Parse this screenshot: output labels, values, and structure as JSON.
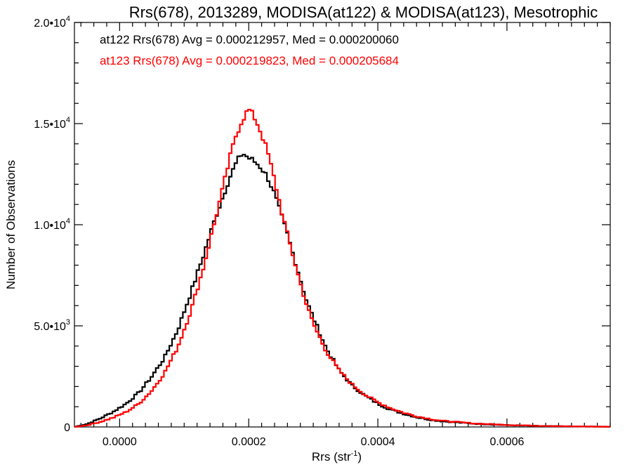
{
  "chart_data": {
    "type": "line",
    "title": "Rrs(678), 2013289, MODISA(at122) & MODISA(at123), Mesotrophic",
    "xlabel": "Rrs (str",
    "xlabel_sup": "-1",
    "xlabel_suffix": ")",
    "ylabel": "Number of Observations",
    "xlim": [
      -7e-05,
      0.00076
    ],
    "ylim": [
      0,
      20000
    ],
    "x_ticks": [
      0.0,
      0.0002,
      0.0004,
      0.0006
    ],
    "x_tick_labels": [
      "0.0000",
      "0.0002",
      "0.0004",
      "0.0006"
    ],
    "y_ticks": [
      {
        "value": 0,
        "base": "0",
        "exp": ""
      },
      {
        "value": 5000,
        "base": "5.0•10",
        "exp": "3"
      },
      {
        "value": 10000,
        "base": "1.0•10",
        "exp": "4"
      },
      {
        "value": 15000,
        "base": "1.5•10",
        "exp": "4"
      },
      {
        "value": 20000,
        "base": "2.0•10",
        "exp": "4"
      }
    ],
    "grid": false,
    "legend": [
      {
        "text": "at122 Rrs(678) Avg = 0.000212957, Med = 0.000200060",
        "color": "#000000"
      },
      {
        "text": "at123 Rrs(678) Avg = 0.000219823, Med = 0.000205684",
        "color": "#ff0000"
      }
    ],
    "series": [
      {
        "name": "at122",
        "color": "#000000",
        "x": [
          -7e-05,
          -5e-05,
          -3e-05,
          -1e-05,
          1e-05,
          3e-05,
          5e-05,
          7e-05,
          9e-05,
          0.00011,
          0.00013,
          0.00015,
          0.00016,
          0.00017,
          0.00018,
          0.00019,
          0.0002,
          0.00021,
          0.00022,
          0.00023,
          0.00024,
          0.00025,
          0.00026,
          0.00027,
          0.00028,
          0.00029,
          0.0003,
          0.00032,
          0.00034,
          0.00036,
          0.00038,
          0.0004,
          0.00042,
          0.00044,
          0.00046,
          0.00048,
          0.0005,
          0.00055,
          0.0006,
          0.00065,
          0.0007,
          0.00076
        ],
        "values": [
          0,
          150,
          420,
          750,
          1150,
          1700,
          2500,
          3450,
          4800,
          6600,
          8500,
          10500,
          11400,
          12300,
          13000,
          13550,
          13300,
          13100,
          12800,
          12300,
          11500,
          10500,
          9500,
          8400,
          7300,
          6200,
          5400,
          3900,
          2800,
          2050,
          1550,
          1150,
          850,
          650,
          480,
          360,
          280,
          160,
          90,
          50,
          25,
          10
        ]
      },
      {
        "name": "at123",
        "color": "#ff0000",
        "x": [
          -7e-05,
          -5e-05,
          -3e-05,
          -1e-05,
          1e-05,
          3e-05,
          5e-05,
          7e-05,
          9e-05,
          0.00011,
          0.00013,
          0.00015,
          0.00016,
          0.00017,
          0.00018,
          0.00019,
          0.0002,
          0.00021,
          0.00022,
          0.00023,
          0.00024,
          0.00025,
          0.00026,
          0.00027,
          0.00028,
          0.00029,
          0.0003,
          0.00032,
          0.00034,
          0.00036,
          0.00038,
          0.0004,
          0.00042,
          0.00044,
          0.00046,
          0.00048,
          0.0005,
          0.00055,
          0.0006,
          0.00065,
          0.0007,
          0.00076
        ],
        "values": [
          0,
          90,
          250,
          460,
          740,
          1150,
          1800,
          2700,
          3950,
          5700,
          7900,
          10500,
          11800,
          13200,
          14400,
          15200,
          15700,
          15250,
          14500,
          13500,
          12200,
          10800,
          9500,
          8300,
          7100,
          6000,
          5100,
          3750,
          2800,
          2100,
          1600,
          1220,
          930,
          700,
          530,
          400,
          300,
          170,
          100,
          55,
          28,
          12
        ]
      }
    ]
  }
}
